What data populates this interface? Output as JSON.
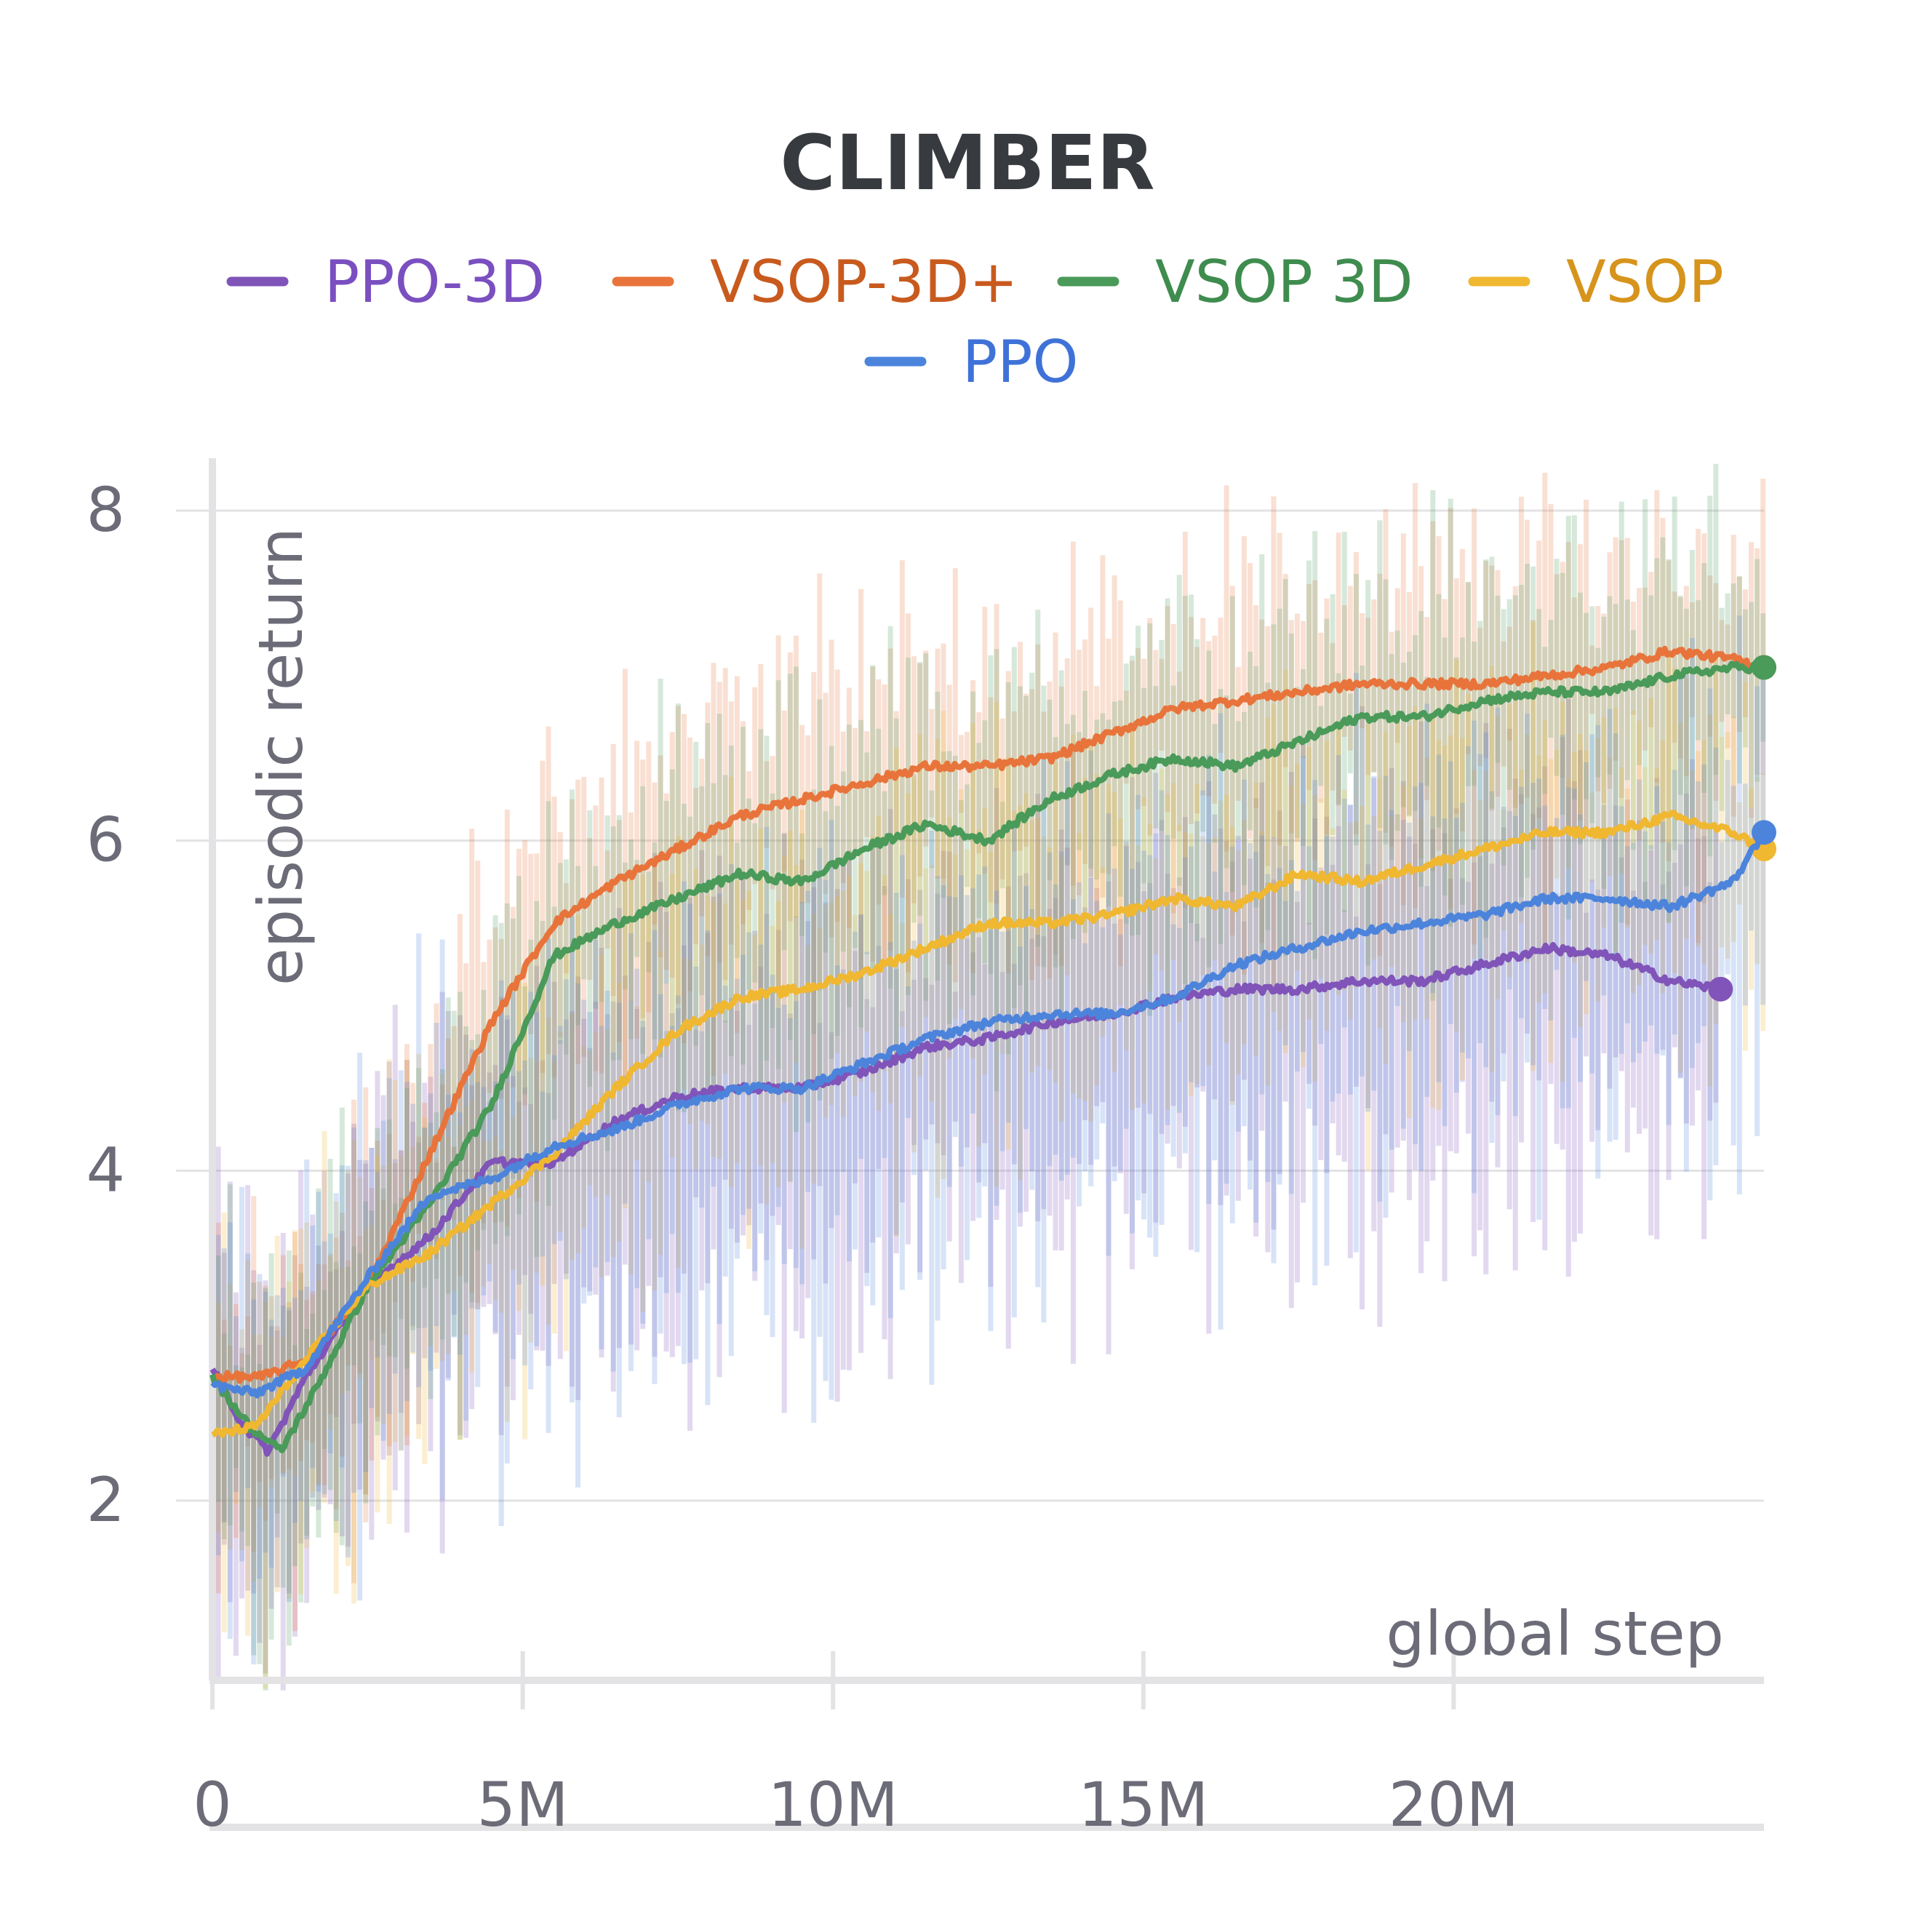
{
  "chart_data": {
    "type": "line",
    "title": "CLIMBER",
    "xlabel": "global step",
    "ylabel": "episodic return",
    "xlim": [
      0,
      25000000
    ],
    "ylim": [
      0.8,
      8.4
    ],
    "x_ticks": [
      {
        "value": 0,
        "label": "0"
      },
      {
        "value": 5000000,
        "label": "5M"
      },
      {
        "value": 10000000,
        "label": "10M"
      },
      {
        "value": 15000000,
        "label": "15M"
      },
      {
        "value": 20000000,
        "label": "20M"
      }
    ],
    "y_ticks": [
      {
        "value": 2,
        "label": "2"
      },
      {
        "value": 4,
        "label": "4"
      },
      {
        "value": 6,
        "label": "6"
      },
      {
        "value": 8,
        "label": "8"
      }
    ],
    "grid": "horizontal",
    "legend_position": "top-center",
    "series": [
      {
        "name": "PPO-3D",
        "color": "#8054b8",
        "text_color": "#7a4fc0",
        "x": [
          0,
          500000,
          900000,
          1500000,
          2500000,
          3500000,
          4500000,
          5500000,
          6500000,
          7500000,
          8500000,
          9500000,
          10500000,
          11500000,
          12500000,
          13500000,
          14500000,
          15500000,
          16500000,
          17500000,
          18500000,
          19500000,
          20500000,
          21500000,
          22500000,
          23500000,
          24300000
        ],
        "values": [
          2.8,
          2.45,
          2.3,
          2.75,
          3.3,
          3.6,
          4.05,
          4.05,
          4.3,
          4.45,
          4.5,
          4.5,
          4.6,
          4.75,
          4.8,
          4.9,
          4.95,
          5.05,
          5.1,
          5.1,
          5.15,
          5.15,
          5.25,
          5.35,
          5.3,
          5.15,
          5.1
        ]
      },
      {
        "name": "VSOP-3D+",
        "color": "#e8743b",
        "text_color": "#c85a1e",
        "x": [
          0,
          800000,
          1500000,
          2500000,
          3500000,
          4500000,
          5500000,
          6500000,
          7500000,
          8500000,
          9500000,
          10500000,
          11500000,
          12500000,
          13500000,
          14500000,
          15500000,
          16500000,
          17500000,
          18500000,
          19500000,
          20500000,
          21500000,
          22500000,
          23500000,
          24500000,
          25000000
        ],
        "values": [
          2.75,
          2.75,
          2.85,
          3.3,
          4.1,
          4.9,
          5.5,
          5.75,
          5.95,
          6.15,
          6.25,
          6.35,
          6.45,
          6.45,
          6.5,
          6.65,
          6.8,
          6.85,
          6.9,
          6.95,
          6.95,
          6.95,
          7.0,
          7.05,
          7.15,
          7.1,
          7.05
        ]
      },
      {
        "name": "VSOP 3D",
        "color": "#4a9a5a",
        "text_color": "#3f8c4f",
        "x": [
          0,
          600000,
          1100000,
          1700000,
          2500000,
          3500000,
          4500000,
          5500000,
          6500000,
          7500000,
          8500000,
          9500000,
          10500000,
          11500000,
          12500000,
          13500000,
          14500000,
          15500000,
          16500000,
          17500000,
          18500000,
          19500000,
          20500000,
          21500000,
          22500000,
          23500000,
          24500000,
          25000000
        ],
        "values": [
          2.75,
          2.45,
          2.3,
          2.7,
          3.3,
          3.8,
          4.4,
          5.3,
          5.5,
          5.65,
          5.8,
          5.75,
          5.95,
          6.1,
          6.0,
          6.25,
          6.4,
          6.5,
          6.45,
          6.6,
          6.75,
          6.75,
          6.85,
          6.9,
          6.9,
          7.0,
          7.05,
          7.05
        ]
      },
      {
        "name": "VSOP",
        "color": "#f0b731",
        "text_color": "#d6941c",
        "x": [
          0,
          700000,
          1500000,
          2500000,
          3500000,
          4500000,
          5500000,
          6500000,
          7500000,
          8500000,
          9500000,
          10500000,
          11500000,
          12500000,
          13500000,
          14500000,
          15500000,
          16500000,
          17500000,
          18500000,
          19500000,
          20500000,
          21500000,
          22500000,
          23500000,
          24500000,
          25000000
        ],
        "values": [
          2.4,
          2.45,
          2.85,
          3.3,
          3.5,
          3.8,
          4.1,
          4.5,
          4.85,
          5.05,
          5.1,
          5.2,
          5.35,
          5.5,
          5.5,
          5.55,
          5.65,
          5.6,
          5.8,
          5.75,
          5.85,
          5.95,
          6.05,
          6.05,
          6.15,
          6.05,
          5.95
        ]
      },
      {
        "name": "PPO",
        "color": "#4c84dc",
        "text_color": "#3f72d8",
        "x": [
          0,
          700000,
          1500000,
          2500000,
          3500000,
          4500000,
          5500000,
          6500000,
          7500000,
          8500000,
          9500000,
          10500000,
          11500000,
          12500000,
          13500000,
          14500000,
          15500000,
          16500000,
          17500000,
          18500000,
          19500000,
          20500000,
          21500000,
          22500000,
          23500000,
          24500000,
          25000000
        ],
        "values": [
          2.7,
          2.65,
          2.8,
          3.35,
          3.85,
          3.95,
          4.15,
          4.25,
          4.4,
          4.5,
          4.5,
          4.65,
          4.8,
          4.9,
          4.95,
          4.95,
          5.05,
          5.25,
          5.35,
          5.45,
          5.5,
          5.55,
          5.65,
          5.65,
          5.6,
          5.75,
          6.05
        ]
      }
    ]
  }
}
